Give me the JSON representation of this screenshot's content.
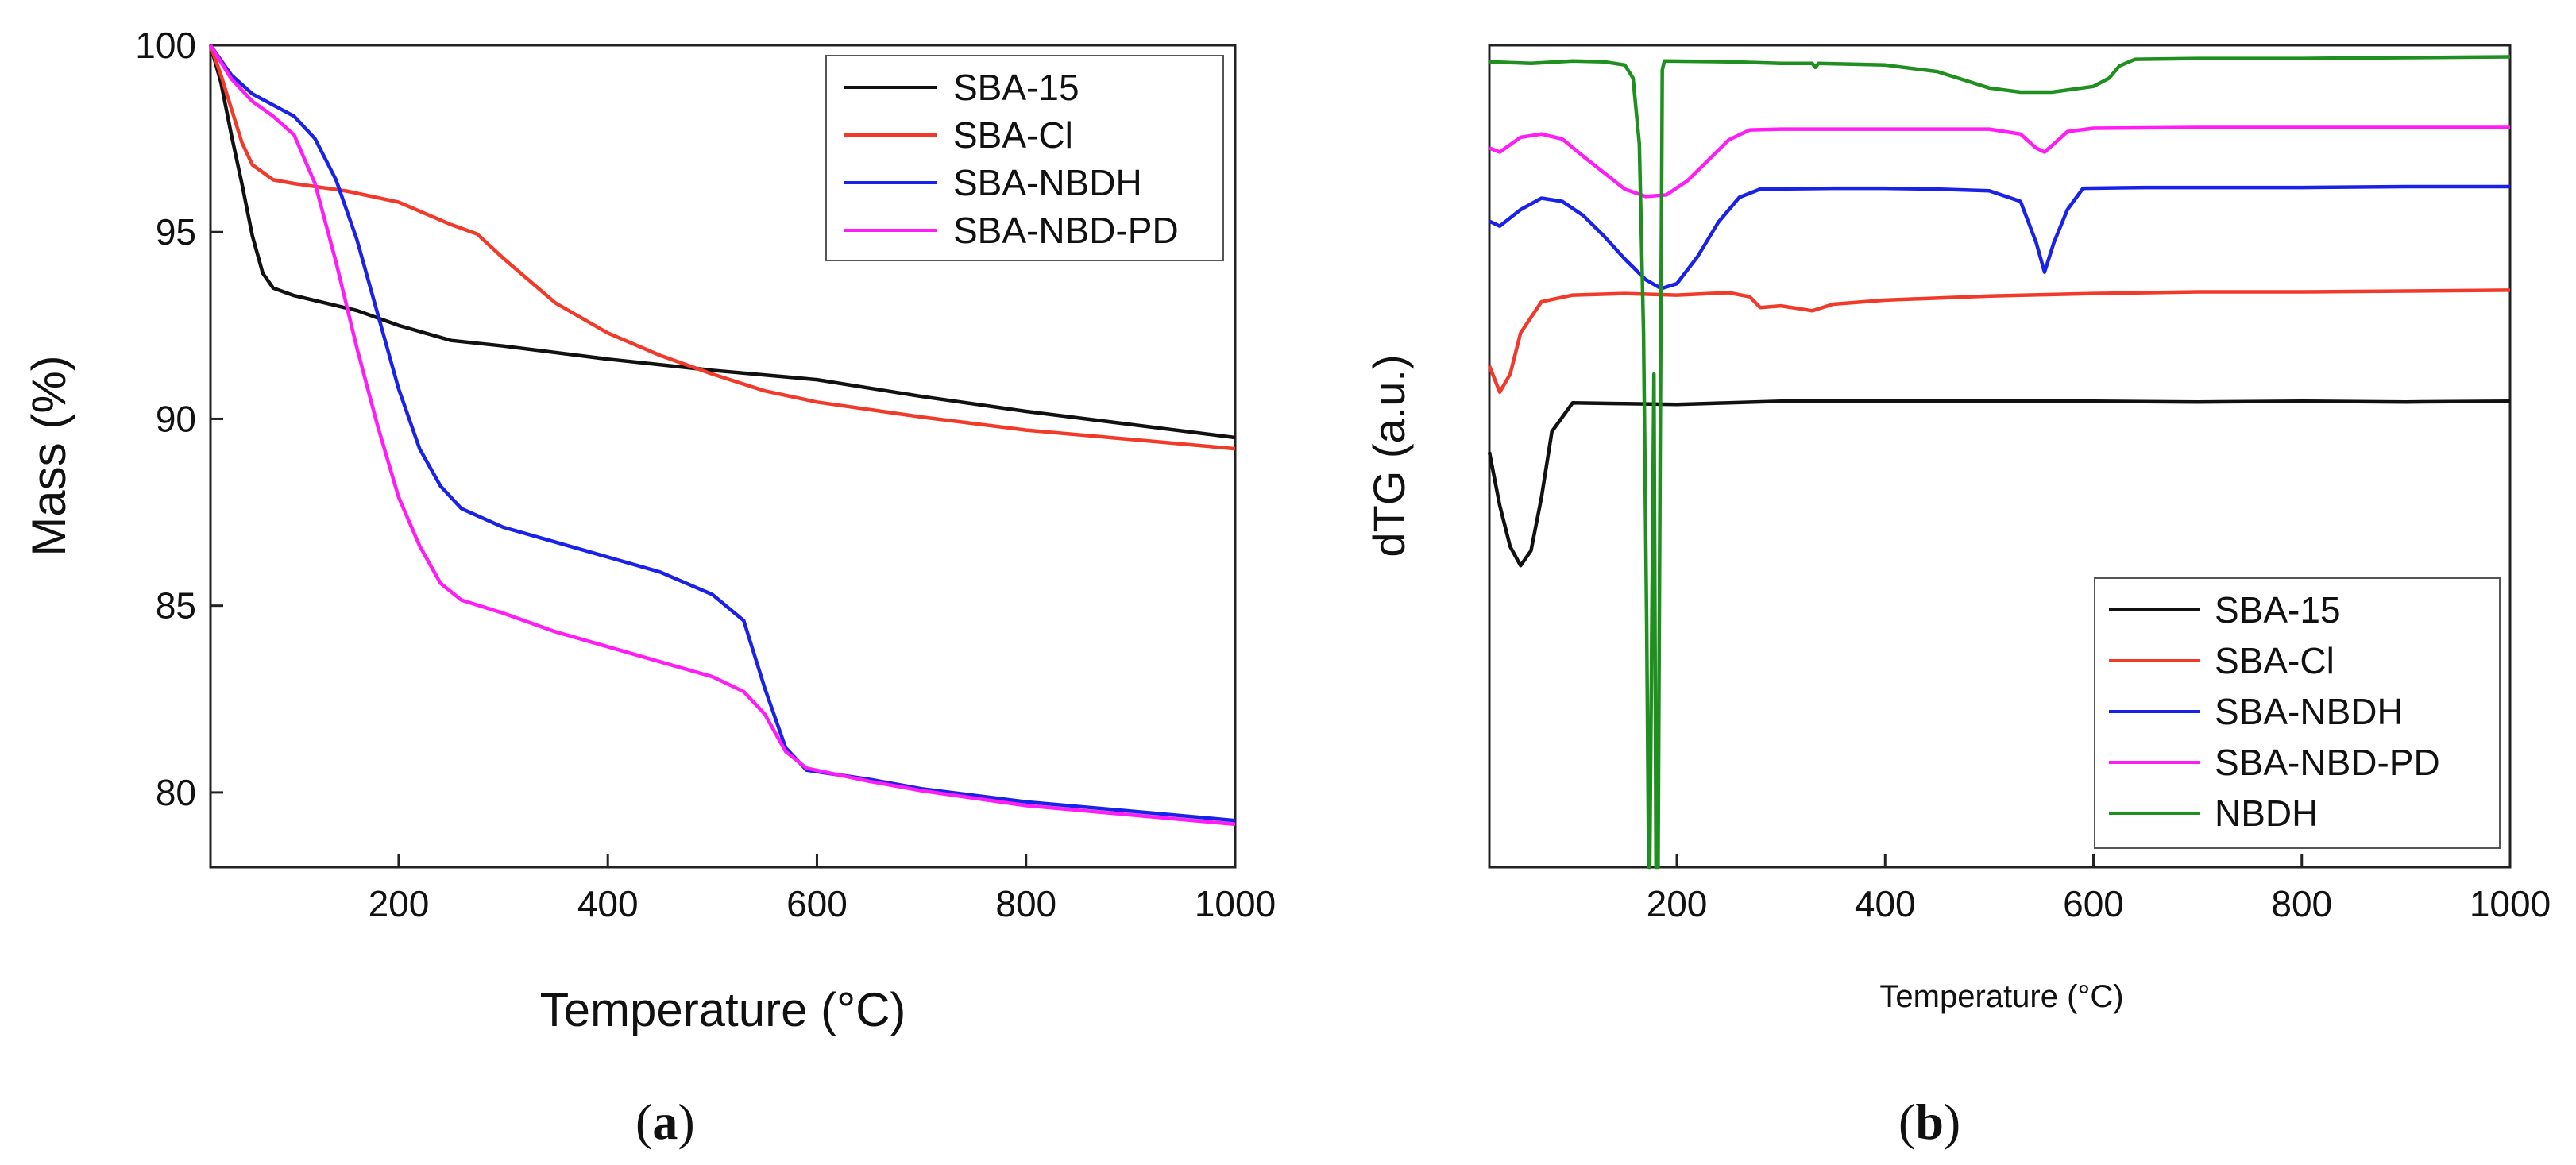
{
  "colors": {
    "SBA-15": "#111111",
    "SBA-Cl": "#f23a2a",
    "SBA-NBDH": "#1a22e8",
    "SBA-NBD-PD": "#ff1cf6",
    "NBDH": "#1f8f1f"
  },
  "chart_data": [
    {
      "type": "line",
      "panel_label": "a",
      "xlabel": "Temperature (°C)",
      "ylabel": "Mass (%)",
      "xlim": [
        20,
        1000
      ],
      "ylim": [
        78,
        100
      ],
      "x_ticks": [
        200,
        400,
        600,
        800,
        1000
      ],
      "y_ticks": [
        80,
        85,
        90,
        95,
        100
      ],
      "legend_position": "top-right",
      "series": [
        {
          "name": "SBA-15",
          "points": [
            [
              20,
              100
            ],
            [
              30,
              99
            ],
            [
              40,
              97.6
            ],
            [
              50,
              96.3
            ],
            [
              60,
              94.9
            ],
            [
              70,
              93.9
            ],
            [
              80,
              93.5
            ],
            [
              100,
              93.3
            ],
            [
              130,
              93.1
            ],
            [
              160,
              92.9
            ],
            [
              200,
              92.5
            ],
            [
              250,
              92.1
            ],
            [
              300,
              91.95
            ],
            [
              400,
              91.6
            ],
            [
              500,
              91.3
            ],
            [
              600,
              91.05
            ],
            [
              700,
              90.6
            ],
            [
              800,
              90.2
            ],
            [
              900,
              89.85
            ],
            [
              1000,
              89.5
            ]
          ]
        },
        {
          "name": "SBA-Cl",
          "points": [
            [
              20,
              100
            ],
            [
              30,
              99.2
            ],
            [
              40,
              98.3
            ],
            [
              50,
              97.4
            ],
            [
              60,
              96.8
            ],
            [
              80,
              96.4
            ],
            [
              100,
              96.3
            ],
            [
              150,
              96.1
            ],
            [
              200,
              95.8
            ],
            [
              250,
              95.2
            ],
            [
              275,
              94.95
            ],
            [
              300,
              94.3
            ],
            [
              350,
              93.1
            ],
            [
              400,
              92.3
            ],
            [
              450,
              91.7
            ],
            [
              500,
              91.2
            ],
            [
              550,
              90.75
            ],
            [
              600,
              90.45
            ],
            [
              700,
              90.05
            ],
            [
              800,
              89.7
            ],
            [
              900,
              89.45
            ],
            [
              1000,
              89.2
            ]
          ]
        },
        {
          "name": "SBA-NBDH",
          "points": [
            [
              20,
              100
            ],
            [
              40,
              99.2
            ],
            [
              60,
              98.7
            ],
            [
              80,
              98.4
            ],
            [
              100,
              98.1
            ],
            [
              120,
              97.5
            ],
            [
              140,
              96.4
            ],
            [
              160,
              94.8
            ],
            [
              180,
              92.8
            ],
            [
              200,
              90.8
            ],
            [
              220,
              89.2
            ],
            [
              240,
              88.2
            ],
            [
              260,
              87.6
            ],
            [
              300,
              87.1
            ],
            [
              350,
              86.7
            ],
            [
              400,
              86.3
            ],
            [
              450,
              85.9
            ],
            [
              500,
              85.3
            ],
            [
              530,
              84.6
            ],
            [
              550,
              82.8
            ],
            [
              570,
              81.2
            ],
            [
              590,
              80.6
            ],
            [
              650,
              80.35
            ],
            [
              700,
              80.1
            ],
            [
              800,
              79.75
            ],
            [
              900,
              79.5
            ],
            [
              1000,
              79.25
            ]
          ]
        },
        {
          "name": "SBA-NBD-PD",
          "points": [
            [
              20,
              100
            ],
            [
              40,
              99.1
            ],
            [
              60,
              98.5
            ],
            [
              80,
              98.1
            ],
            [
              100,
              97.6
            ],
            [
              120,
              96.3
            ],
            [
              140,
              94.2
            ],
            [
              160,
              91.9
            ],
            [
              180,
              89.8
            ],
            [
              200,
              87.9
            ],
            [
              220,
              86.6
            ],
            [
              240,
              85.6
            ],
            [
              260,
              85.15
            ],
            [
              300,
              84.8
            ],
            [
              350,
              84.3
            ],
            [
              400,
              83.9
            ],
            [
              450,
              83.5
            ],
            [
              500,
              83.1
            ],
            [
              530,
              82.7
            ],
            [
              550,
              82.1
            ],
            [
              570,
              81.1
            ],
            [
              590,
              80.65
            ],
            [
              650,
              80.3
            ],
            [
              700,
              80.05
            ],
            [
              800,
              79.65
            ],
            [
              900,
              79.4
            ],
            [
              1000,
              79.15
            ]
          ]
        }
      ]
    },
    {
      "type": "line",
      "panel_label": "b",
      "xlabel": "Temperature (°C)",
      "ylabel": "dTG (a.u.)",
      "xlim": [
        20,
        1000
      ],
      "ylim": [
        0,
        100
      ],
      "x_ticks": [
        200,
        400,
        600,
        800,
        1000
      ],
      "y_ticks": [],
      "legend_position": "bottom-right",
      "series": [
        {
          "name": "SBA-15",
          "points": [
            [
              20,
              50.5
            ],
            [
              30,
              44
            ],
            [
              40,
              39
            ],
            [
              50,
              36.7
            ],
            [
              60,
              38.5
            ],
            [
              70,
              45
            ],
            [
              80,
              53
            ],
            [
              100,
              56.5
            ],
            [
              150,
              56.4
            ],
            [
              200,
              56.3
            ],
            [
              250,
              56.5
            ],
            [
              300,
              56.7
            ],
            [
              400,
              56.7
            ],
            [
              500,
              56.7
            ],
            [
              600,
              56.7
            ],
            [
              700,
              56.6
            ],
            [
              800,
              56.7
            ],
            [
              900,
              56.6
            ],
            [
              1000,
              56.7
            ]
          ]
        },
        {
          "name": "SBA-Cl",
          "points": [
            [
              20,
              61
            ],
            [
              30,
              57.8
            ],
            [
              40,
              60
            ],
            [
              50,
              65
            ],
            [
              70,
              68.8
            ],
            [
              100,
              69.6
            ],
            [
              150,
              69.8
            ],
            [
              200,
              69.6
            ],
            [
              250,
              69.9
            ],
            [
              270,
              69.4
            ],
            [
              280,
              68.1
            ],
            [
              300,
              68.3
            ],
            [
              320,
              67.9
            ],
            [
              330,
              67.7
            ],
            [
              350,
              68.5
            ],
            [
              400,
              69.0
            ],
            [
              500,
              69.5
            ],
            [
              600,
              69.8
            ],
            [
              700,
              70.0
            ],
            [
              800,
              70.0
            ],
            [
              900,
              70.1
            ],
            [
              1000,
              70.2
            ]
          ]
        },
        {
          "name": "SBA-NBDH",
          "points": [
            [
              20,
              78.6
            ],
            [
              30,
              78
            ],
            [
              50,
              80
            ],
            [
              70,
              81.4
            ],
            [
              90,
              81
            ],
            [
              110,
              79.3
            ],
            [
              130,
              76.8
            ],
            [
              150,
              74
            ],
            [
              170,
              71.5
            ],
            [
              185,
              70.4
            ],
            [
              200,
              71
            ],
            [
              220,
              74.3
            ],
            [
              240,
              78.5
            ],
            [
              260,
              81.5
            ],
            [
              280,
              82.5
            ],
            [
              350,
              82.6
            ],
            [
              400,
              82.6
            ],
            [
              450,
              82.5
            ],
            [
              500,
              82.3
            ],
            [
              530,
              81
            ],
            [
              545,
              76
            ],
            [
              553,
              72.4
            ],
            [
              562,
              76
            ],
            [
              575,
              80
            ],
            [
              590,
              82.6
            ],
            [
              650,
              82.7
            ],
            [
              800,
              82.7
            ],
            [
              900,
              82.8
            ],
            [
              1000,
              82.8
            ]
          ]
        },
        {
          "name": "SBA-NBD-PD",
          "points": [
            [
              20,
              87.5
            ],
            [
              30,
              87
            ],
            [
              50,
              88.8
            ],
            [
              70,
              89.2
            ],
            [
              90,
              88.6
            ],
            [
              110,
              86.5
            ],
            [
              130,
              84.5
            ],
            [
              150,
              82.5
            ],
            [
              170,
              81.6
            ],
            [
              190,
              81.8
            ],
            [
              210,
              83.5
            ],
            [
              230,
              86
            ],
            [
              250,
              88.5
            ],
            [
              270,
              89.7
            ],
            [
              300,
              89.8
            ],
            [
              400,
              89.8
            ],
            [
              500,
              89.8
            ],
            [
              530,
              89.2
            ],
            [
              545,
              87.5
            ],
            [
              553,
              87
            ],
            [
              562,
              88
            ],
            [
              575,
              89.5
            ],
            [
              600,
              89.9
            ],
            [
              700,
              90
            ],
            [
              800,
              90
            ],
            [
              900,
              90
            ],
            [
              1000,
              90
            ]
          ]
        },
        {
          "name": "NBDH",
          "points": [
            [
              20,
              98
            ],
            [
              60,
              97.8
            ],
            [
              100,
              98.1
            ],
            [
              130,
              98
            ],
            [
              150,
              97.6
            ],
            [
              158,
              96
            ],
            [
              164,
              88
            ],
            [
              168,
              65
            ],
            [
              171,
              30
            ],
            [
              173,
              0
            ],
            [
              174,
              0
            ],
            [
              176,
              30
            ],
            [
              178,
              60
            ],
            [
              180,
              0
            ],
            [
              182,
              0
            ],
            [
              184,
              50
            ],
            [
              186,
              97
            ],
            [
              188,
              98.1
            ],
            [
              250,
              98
            ],
            [
              300,
              97.8
            ],
            [
              330,
              97.8
            ],
            [
              333,
              97.3
            ],
            [
              336,
              97.8
            ],
            [
              400,
              97.6
            ],
            [
              450,
              96.8
            ],
            [
              480,
              95.6
            ],
            [
              500,
              94.8
            ],
            [
              530,
              94.3
            ],
            [
              560,
              94.3
            ],
            [
              600,
              95
            ],
            [
              615,
              96
            ],
            [
              625,
              97.5
            ],
            [
              640,
              98.3
            ],
            [
              700,
              98.4
            ],
            [
              800,
              98.4
            ],
            [
              900,
              98.5
            ],
            [
              1000,
              98.6
            ]
          ]
        }
      ]
    }
  ]
}
